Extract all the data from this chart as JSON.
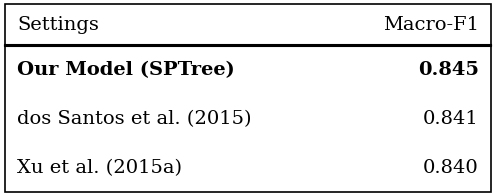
{
  "header": [
    "Settings",
    "Macro-F1"
  ],
  "rows": [
    [
      "Our Model (SPTree)",
      "0.845",
      true
    ],
    [
      "dos Santos et al. (2015)",
      "0.841",
      false
    ],
    [
      "Xu et al. (2015a)",
      "0.840",
      false
    ]
  ],
  "bg_color": "#ffffff",
  "text_color": "#000000",
  "header_fontsize": 14,
  "body_fontsize": 14,
  "fig_width": 4.96,
  "fig_height": 1.96
}
